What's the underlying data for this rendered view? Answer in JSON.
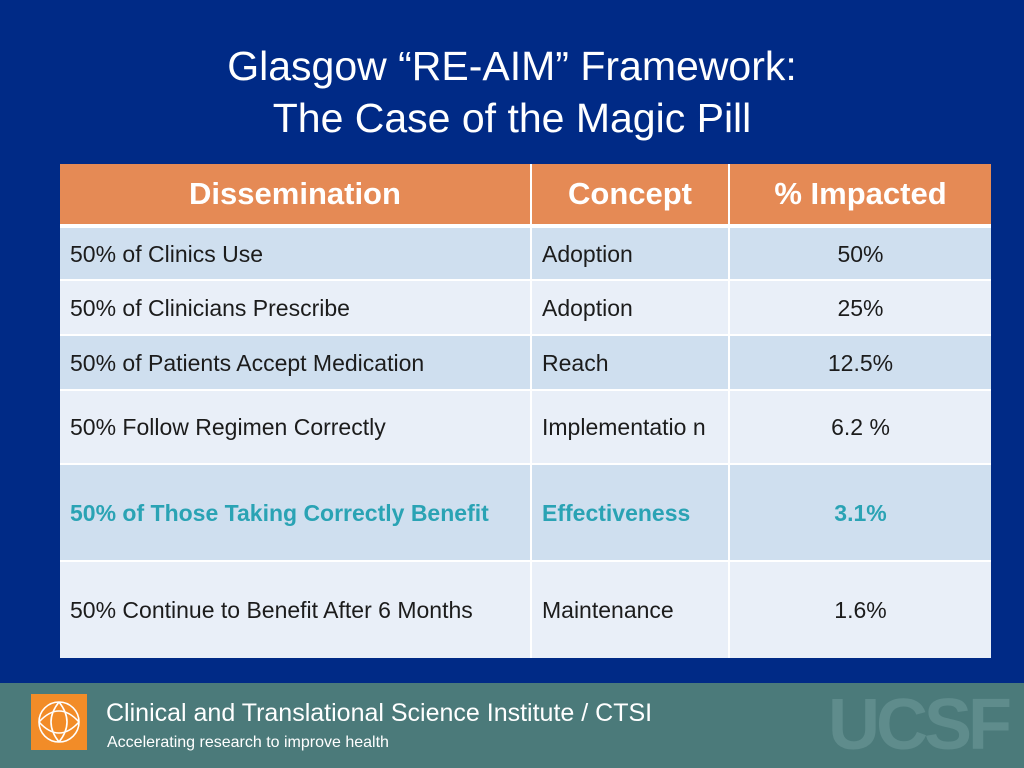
{
  "title": {
    "line1": "Glasgow “RE-AIM” Framework:",
    "line2": "The Case of the Magic Pill"
  },
  "table": {
    "headers": [
      "Dissemination",
      "Concept",
      "% Impacted"
    ],
    "rows": [
      [
        "50% of Clinics Use",
        "Adoption",
        "50%"
      ],
      [
        "50% of Clinicians Prescribe",
        "Adoption",
        "25%"
      ],
      [
        "50% of Patients Accept Medication",
        "Reach",
        "12.5%"
      ],
      [
        "50% Follow Regimen Correctly",
        "Implementatio n",
        "6.2 %"
      ],
      [
        "50% of Those Taking Correctly Benefit",
        "Effectiveness",
        "3.1%"
      ],
      [
        "50% Continue to Benefit After 6 Months",
        "Maintenance",
        "1.6%"
      ]
    ]
  },
  "footer": {
    "org_name": "Clinical and Translational Science Institute / CTSI",
    "tagline": "Accelerating research to improve health",
    "watermark": "UCSF"
  },
  "colors": {
    "background": "#002a86",
    "header_fill": "#e58a55",
    "row_dark": "#cfdfef",
    "row_light": "#e9eff8",
    "highlight_text": "#2aa3b4",
    "footer_band": "#4b7a7a",
    "logo_orange": "#f28c28"
  },
  "icons": {
    "logo": "ctsi-logo-icon"
  }
}
